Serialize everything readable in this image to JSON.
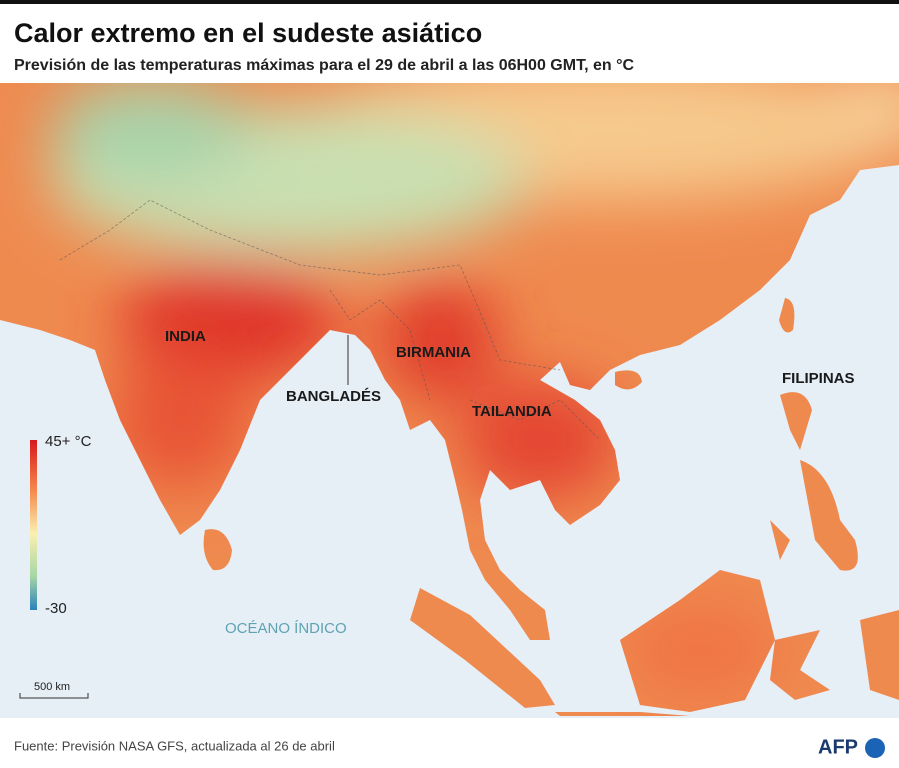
{
  "header": {
    "title": "Calor extremo en el sudeste asiático",
    "subtitle": "Previsión de las temperaturas máximas para el 29 de abril a las 06H00 GMT, en °C"
  },
  "map": {
    "labels": [
      "INDIA",
      "BANGLADÉS",
      "BIRMANIA",
      "TAILANDIA",
      "FILIPINAS"
    ],
    "ocean": "OCÉANO ÍNDICO"
  },
  "legend": {
    "max": "45+ °C",
    "min": "-30"
  },
  "scale": "500 km",
  "footer": {
    "source": "Fuente: Previsión NASA GFS, actualizada al 26 de abril",
    "logo": "AFP"
  }
}
